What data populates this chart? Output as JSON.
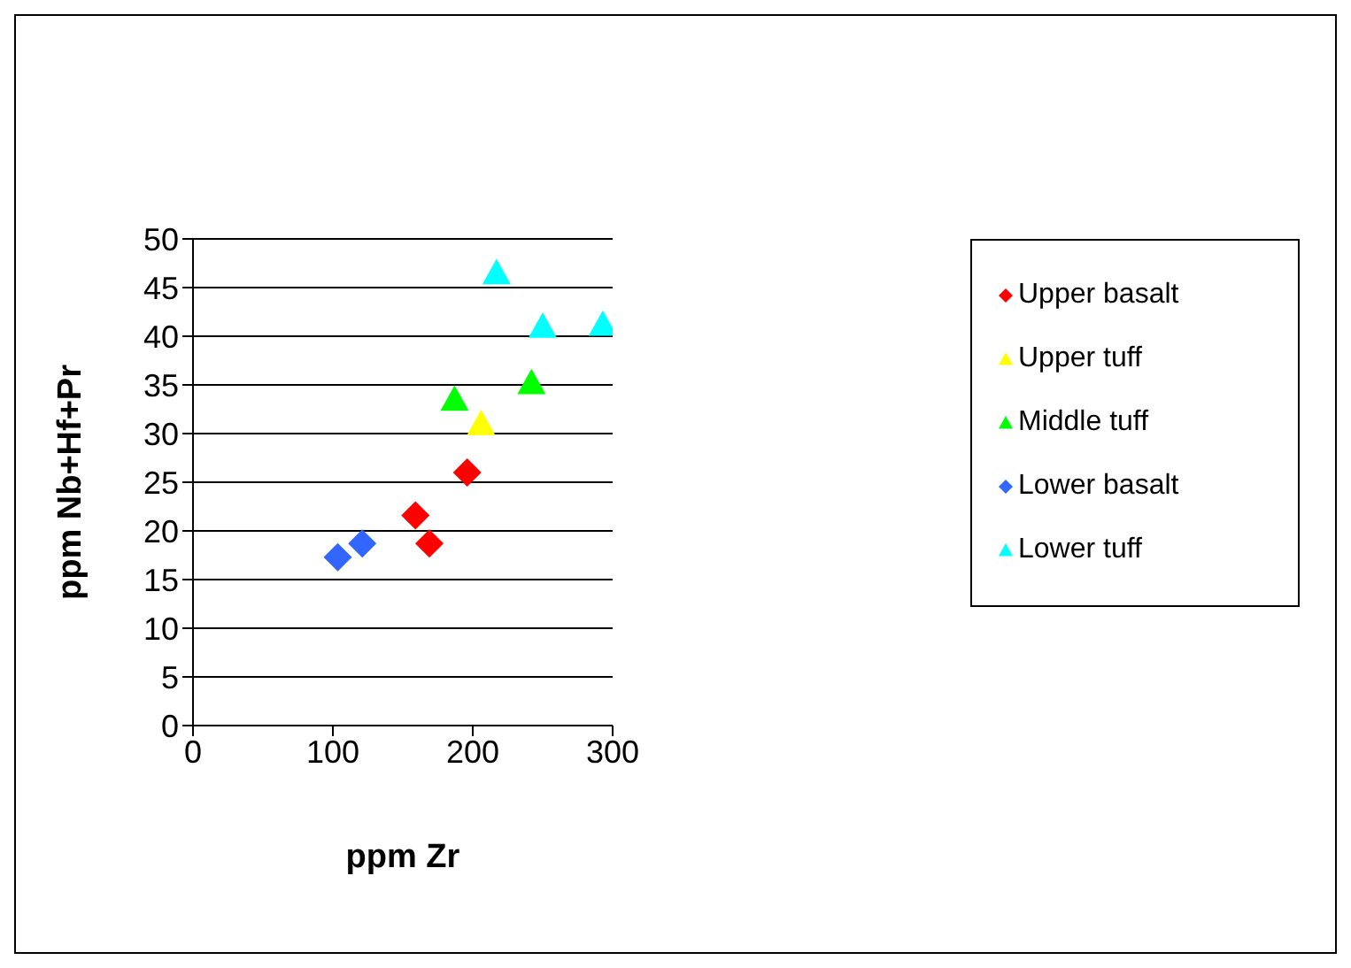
{
  "chart_data": {
    "type": "scatter",
    "xlabel": "ppm Zr",
    "ylabel": "ppm Nb+Hf+Pr",
    "xlim": [
      0,
      300
    ],
    "xticks": [
      0,
      100,
      200,
      300
    ],
    "ylim": [
      0,
      50
    ],
    "yticks": [
      0,
      5,
      10,
      15,
      20,
      25,
      30,
      35,
      40,
      45,
      50
    ],
    "grid": "y",
    "legend": "right",
    "series": [
      {
        "name": "Upper basalt",
        "color": "#ff0000",
        "marker": "diamond",
        "x": [
          159,
          169,
          196
        ],
        "values": [
          21.6,
          18.7,
          26
        ]
      },
      {
        "name": "Upper tuff",
        "color": "#ffff00",
        "marker": "triangle",
        "x": [
          206
        ],
        "values": [
          31
        ]
      },
      {
        "name": "Middle tuff",
        "color": "#00ff00",
        "marker": "triangle",
        "x": [
          187,
          242
        ],
        "values": [
          33.5,
          35.2
        ]
      },
      {
        "name": "Lower basalt",
        "color": "#3366ff",
        "marker": "diamond",
        "x": [
          103.5,
          121
        ],
        "values": [
          17.3,
          18.7
        ]
      },
      {
        "name": "Lower tuff",
        "color": "#00ffff",
        "marker": "triangle",
        "x": [
          217,
          250,
          293
        ],
        "values": [
          46.5,
          41,
          41.2
        ]
      }
    ]
  }
}
